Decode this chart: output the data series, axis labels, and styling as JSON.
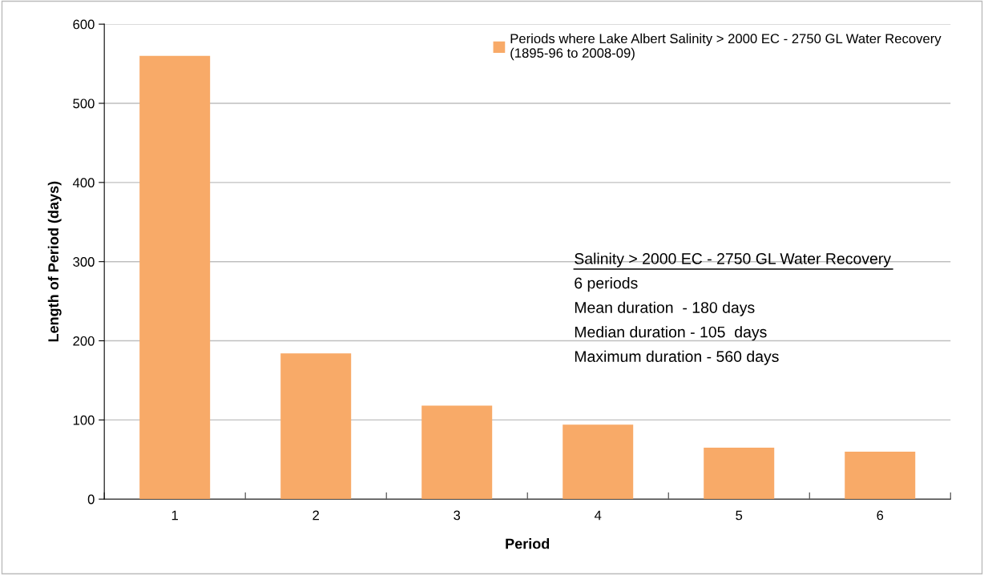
{
  "chart_data": {
    "type": "bar",
    "xlabel": "Period",
    "ylabel": "Length of Period (days)",
    "categories": [
      "1",
      "2",
      "3",
      "4",
      "5",
      "6"
    ],
    "series": [
      {
        "name": "Periods where Lake Albert Salinity > 2000 EC - 2750 GL Water Recovery\n(1895-96 to 2008-09)",
        "color": "#f8aa68",
        "values": [
          560,
          184,
          118,
          94,
          65,
          60
        ]
      }
    ],
    "ylim": [
      0,
      600
    ],
    "yticks": [
      0,
      100,
      200,
      300,
      400,
      500,
      600
    ],
    "grid": "y",
    "legend": "top right",
    "annotations": [
      "Salinity > 2000 EC - 2750 GL Water Recovery",
      "6 periods",
      "Mean duration  - 180 days",
      "Median duration - 105  days",
      "Maximum duration - 560 days"
    ]
  }
}
